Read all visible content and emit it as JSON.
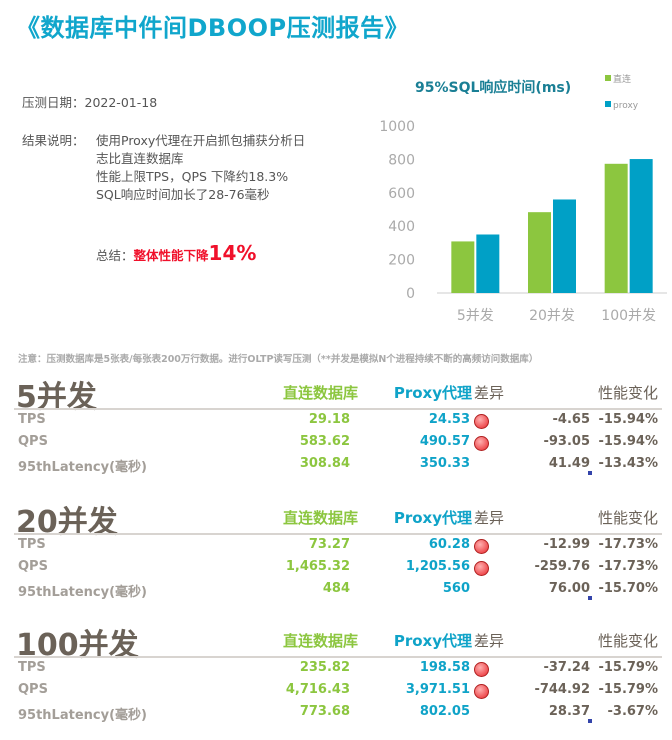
{
  "title": "《数据库中件间DBOOP压测报告》",
  "info": {
    "date_label": "压测日期：2022-01-18",
    "result_label": "结果说明：",
    "result_lines": [
      "使用Proxy代理在开启抓包捕获分析日",
      "志比直连数据库",
      "性能上限TPS，QPS 下降约18.3%",
      "SQL响应时间加长了28-76毫秒"
    ],
    "summary_label": "总结：",
    "summary_text": "整体性能下降",
    "summary_pct": "14%"
  },
  "note": "注意：压测数据库是5张表/每张表200万行数据。进行OLTP读写压测（**并发是模拟N个进程持续不断的高频访问数据库）",
  "colors": {
    "direct": "#8cc63f",
    "proxy": "#00a0c6",
    "title": "#10a6cc",
    "alert": "#f0102a"
  },
  "chart_data": {
    "type": "bar",
    "title": "95%SQL响应时间(ms)",
    "categories": [
      "5并发",
      "20并发",
      "100并发"
    ],
    "series": [
      {
        "name": "直连",
        "values": [
          308.84,
          484,
          773.68
        ]
      },
      {
        "name": "proxy",
        "values": [
          350.33,
          560,
          802.05
        ]
      }
    ],
    "ylim": [
      0,
      1000
    ],
    "yticks": [
      "0",
      "200",
      "400",
      "600",
      "800",
      "1000"
    ],
    "grid": false,
    "legend": "top-right"
  },
  "headers": {
    "direct": "直连数据库",
    "proxy": "Proxy代理",
    "diff": "差异",
    "change": "性能变化"
  },
  "sections": [
    {
      "title": "5并发",
      "rows": [
        {
          "label": "TPS",
          "direct": "29.18",
          "proxy": "24.53",
          "alert": true,
          "diff": "-4.65",
          "change": "-15.94%"
        },
        {
          "label": "QPS",
          "direct": "583.62",
          "proxy": "490.57",
          "alert": true,
          "diff": "-93.05",
          "change": "-15.94%"
        },
        {
          "label": "95thLatency(毫秒)",
          "direct": "308.84",
          "proxy": "350.33",
          "alert": false,
          "diff": "41.49",
          "change": "-13.43%"
        }
      ]
    },
    {
      "title": "20并发",
      "rows": [
        {
          "label": "TPS",
          "direct": "73.27",
          "proxy": "60.28",
          "alert": true,
          "diff": "-12.99",
          "change": "-17.73%"
        },
        {
          "label": "QPS",
          "direct": "1,465.32",
          "proxy": "1,205.56",
          "alert": true,
          "diff": "-259.76",
          "change": "-17.73%"
        },
        {
          "label": "95thLatency(毫秒)",
          "direct": "484",
          "proxy": "560",
          "alert": false,
          "diff": "76.00",
          "change": "-15.70%"
        }
      ]
    },
    {
      "title": "100并发",
      "rows": [
        {
          "label": "TPS",
          "direct": "235.82",
          "proxy": "198.58",
          "alert": true,
          "diff": "-37.24",
          "change": "-15.79%"
        },
        {
          "label": "QPS",
          "direct": "4,716.43",
          "proxy": "3,971.51",
          "alert": true,
          "diff": "-744.92",
          "change": "-15.79%"
        },
        {
          "label": "95thLatency(毫秒)",
          "direct": "773.68",
          "proxy": "802.05",
          "alert": false,
          "diff": "28.37",
          "change": "-3.67%"
        }
      ]
    }
  ]
}
